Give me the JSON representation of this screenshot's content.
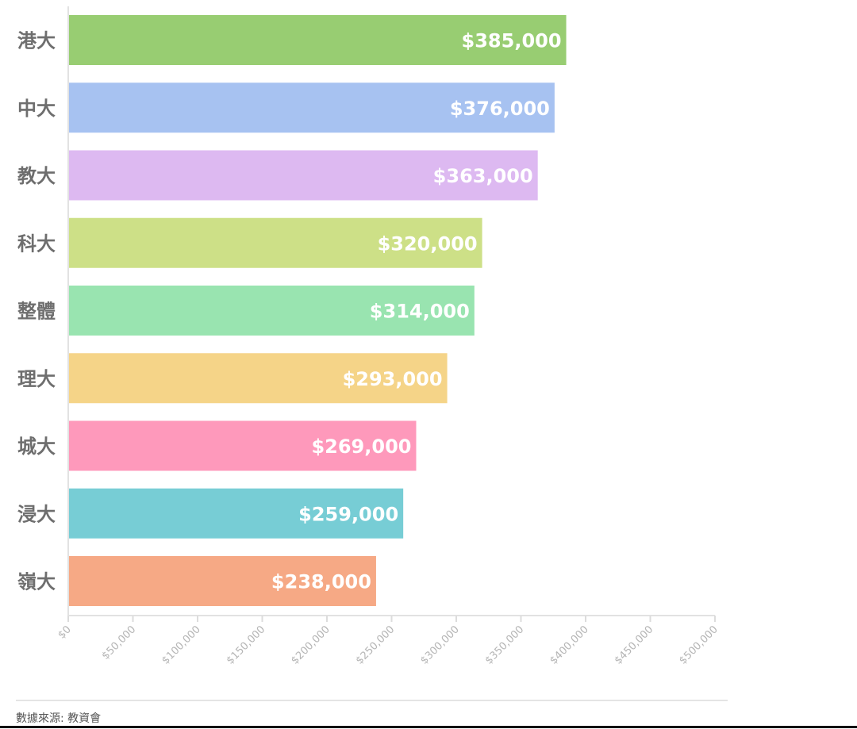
{
  "chart_data": {
    "type": "bar",
    "orientation": "horizontal",
    "categories": [
      "港大",
      "中大",
      "教大",
      "科大",
      "整體",
      "理大",
      "城大",
      "浸大",
      "嶺大"
    ],
    "values": [
      385000,
      376000,
      363000,
      320000,
      314000,
      293000,
      269000,
      259000,
      238000
    ],
    "value_labels": [
      "$385,000",
      "$376,000",
      "$363,000",
      "$320,000",
      "$314,000",
      "$293,000",
      "$269,000",
      "$259,000",
      "$238,000"
    ],
    "colors": [
      "#98cd72",
      "#a7c2f1",
      "#ddb9f1",
      "#cde087",
      "#99e4b0",
      "#f5d488",
      "#fe99bb",
      "#77cdd5",
      "#f6a985"
    ],
    "title": "",
    "xlabel": "",
    "ylabel": "",
    "xlim": [
      0,
      500000
    ],
    "x_ticks": [
      0,
      50000,
      100000,
      150000,
      200000,
      250000,
      300000,
      350000,
      400000,
      450000,
      500000
    ],
    "x_tick_labels": [
      "$0",
      "$50,000",
      "$100,000",
      "$150,000",
      "$200,000",
      "$250,000",
      "$300,000",
      "$350,000",
      "$400,000",
      "$450,000",
      "$500,000"
    ],
    "grid": false,
    "legend": "none"
  },
  "footer": {
    "source": "數據來源: 教資會"
  }
}
